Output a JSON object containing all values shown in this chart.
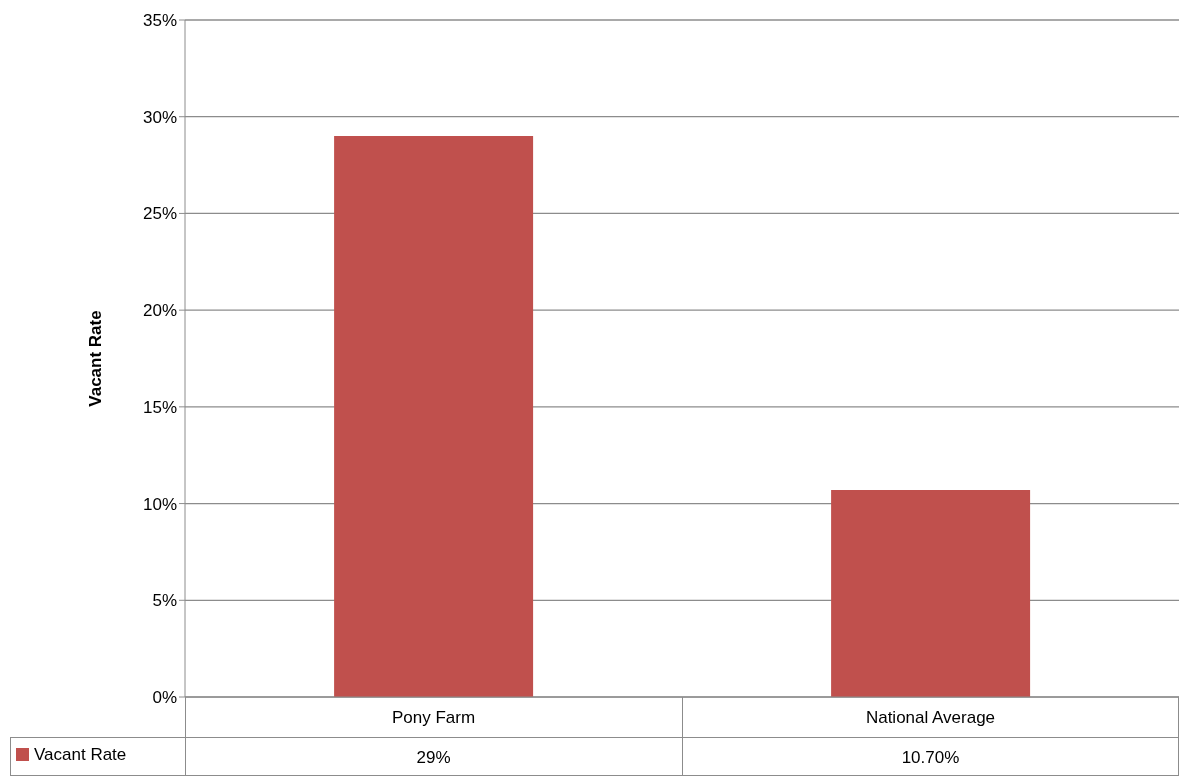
{
  "chart_data": {
    "type": "bar",
    "ylabel": "Vacant Rate",
    "categories": [
      "Pony Farm",
      "National Average"
    ],
    "series": [
      {
        "name": "Vacant Rate",
        "color": "#c0504d",
        "values": [
          29,
          10.7
        ],
        "value_labels": [
          "29%",
          "10.70%"
        ]
      }
    ],
    "ylim": [
      0,
      35
    ],
    "yticks": [
      {
        "value": 0,
        "label": "0%"
      },
      {
        "value": 5,
        "label": "5%"
      },
      {
        "value": 10,
        "label": "10%"
      },
      {
        "value": 15,
        "label": "15%"
      },
      {
        "value": 20,
        "label": "20%"
      },
      {
        "value": 25,
        "label": "25%"
      },
      {
        "value": 30,
        "label": "30%"
      },
      {
        "value": 35,
        "label": "35%"
      }
    ],
    "grid": "y",
    "legend": "bottom"
  }
}
